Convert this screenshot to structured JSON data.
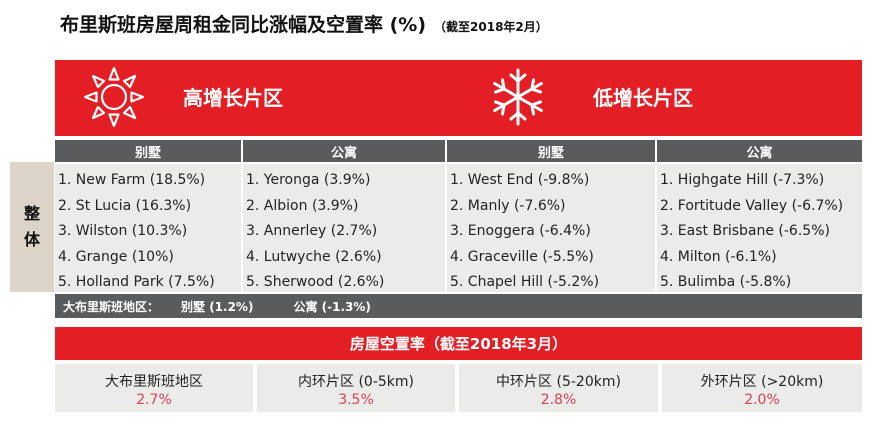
{
  "title": {
    "main": "布里斯班房屋周租金同比涨幅及空置率 (%)",
    "note": "（截至2018年2月）"
  },
  "zones": {
    "high": {
      "label": "高增长片区",
      "icon": "sun-icon"
    },
    "low": {
      "label": "低增长片区",
      "icon": "snowflake-icon"
    }
  },
  "side_label": {
    "line1": "整",
    "line2": "体"
  },
  "columns": [
    {
      "header": "别墅",
      "items": [
        "1. New Farm (18.5%)",
        "2. St Lucia (16.3%)",
        "3. Wilston (10.3%)",
        "4. Grange (10%)",
        "5. Holland Park (7.5%)"
      ]
    },
    {
      "header": "公寓",
      "items": [
        "1. Yeronga (3.9%)",
        "2. Albion (3.9%)",
        "3. Annerley (2.7%)",
        "4. Lutwyche (2.6%)",
        "5. Sherwood (2.6%)"
      ]
    },
    {
      "header": "别墅",
      "items": [
        "1. West End (-9.8%)",
        "2. Manly (-7.6%)",
        "3. Enoggera (-6.4%)",
        "4. Graceville (-5.5%)",
        "5. Chapel Hill (-5.2%)"
      ]
    },
    {
      "header": "公寓",
      "items": [
        "1. Highgate Hill (-7.3%)",
        "2. Fortitude Valley (-6.7%)",
        "3. East Brisbane (-6.5%)",
        "4. Milton (-6.1%)",
        "5. Bulimba (-5.8%)"
      ]
    }
  ],
  "summary": {
    "label": "大布里斯班地区：",
    "house": "别墅 (1.2%)",
    "unit": "公寓 (-1.3%)"
  },
  "vacancy": {
    "title": "房屋空置率（截至2018年3月）",
    "cells": [
      {
        "name": "大布里斯班地区",
        "rate": "2.7%"
      },
      {
        "name": "内环片区 (0-5km)",
        "rate": "3.5%"
      },
      {
        "name": "中环片区 (5-20km)",
        "rate": "2.8%"
      },
      {
        "name": "外环片区 (>20km)",
        "rate": "2.0%"
      }
    ]
  },
  "colors": {
    "accent_red": "#e31e25",
    "header_gray": "#5a5b5d",
    "cell_bg": "#ebebea",
    "side_bg": "#ddd6c8",
    "rate_red": "#e04050"
  }
}
